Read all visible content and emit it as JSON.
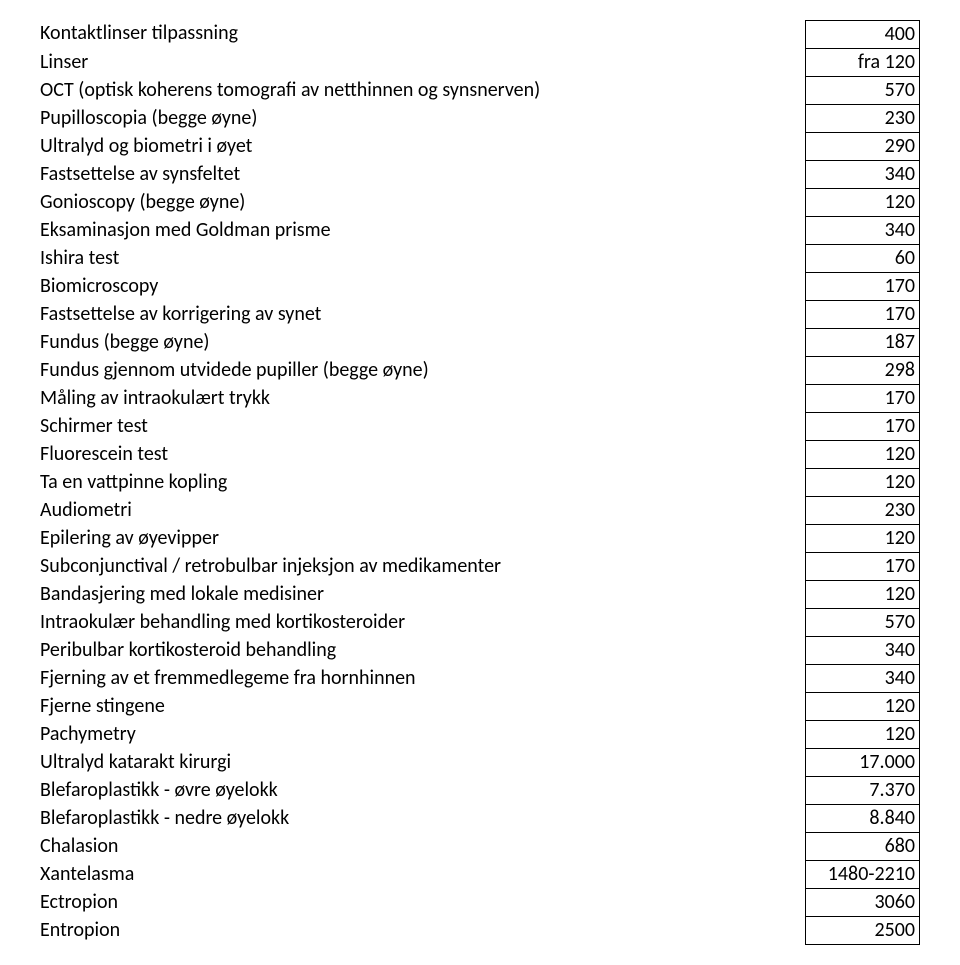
{
  "pricelist": {
    "rows": [
      {
        "label": "Kontaktlinser tilpassning",
        "value": "400"
      },
      {
        "label": "Linser",
        "value": "fra 120"
      },
      {
        "label": "OCT (optisk koherens tomografi av netthinnen og synsnerven)",
        "value": "570"
      },
      {
        "label": "Pupilloscopia (begge øyne)",
        "value": "230"
      },
      {
        "label": "Ultralyd og biometri i øyet",
        "value": "290"
      },
      {
        "label": "Fastsettelse av synsfeltet",
        "value": "340"
      },
      {
        "label": "Gonioscopy (begge øyne)",
        "value": "120"
      },
      {
        "label": "Eksaminasjon med Goldman prisme",
        "value": "340"
      },
      {
        "label": "Ishira test",
        "value": "60"
      },
      {
        "label": "Biomicroscopy",
        "value": "170"
      },
      {
        "label": "Fastsettelse av korrigering av synet",
        "value": "170"
      },
      {
        "label": "Fundus (begge øyne)",
        "value": "187"
      },
      {
        "label": "Fundus gjennom utvidede pupiller (begge øyne)",
        "value": "298"
      },
      {
        "label": "Måling av intraokulært trykk",
        "value": "170"
      },
      {
        "label": "Schirmer test",
        "value": "170"
      },
      {
        "label": "Fluorescein test",
        "value": "120"
      },
      {
        "label": "Ta en vattpinne kopling",
        "value": "120"
      },
      {
        "label": "Audiometri",
        "value": "230"
      },
      {
        "label": "Epilering av øyevipper",
        "value": "120"
      },
      {
        "label": "Subconjunctival / retrobulbar injeksjon av medikamenter",
        "value": "170"
      },
      {
        "label": "Bandasjering med lokale medisiner",
        "value": "120"
      },
      {
        "label": "Intraokulær behandling med kortikosteroider",
        "value": "570"
      },
      {
        "label": "Peribulbar kortikosteroid behandling",
        "value": "340"
      },
      {
        "label": "Fjerning av et fremmedlegeme fra hornhinnen",
        "value": "340"
      },
      {
        "label": "Fjerne stingene",
        "value": "120"
      },
      {
        "label": "Pachymetry",
        "value": "120"
      },
      {
        "label": "Ultralyd katarakt kirurgi",
        "value": "17.000"
      },
      {
        "label": "Blefaroplastikk - øvre øyelokk",
        "value": "7.370"
      },
      {
        "label": "Blefaroplastikk - nedre øyelokk",
        "value": "8.840"
      },
      {
        "label": "Chalasion",
        "value": "680"
      },
      {
        "label": "Xantelasma",
        "value": "1480-2210"
      },
      {
        "label": "Ectropion",
        "value": "3060"
      },
      {
        "label": "Entropion",
        "value": "2500"
      }
    ]
  }
}
